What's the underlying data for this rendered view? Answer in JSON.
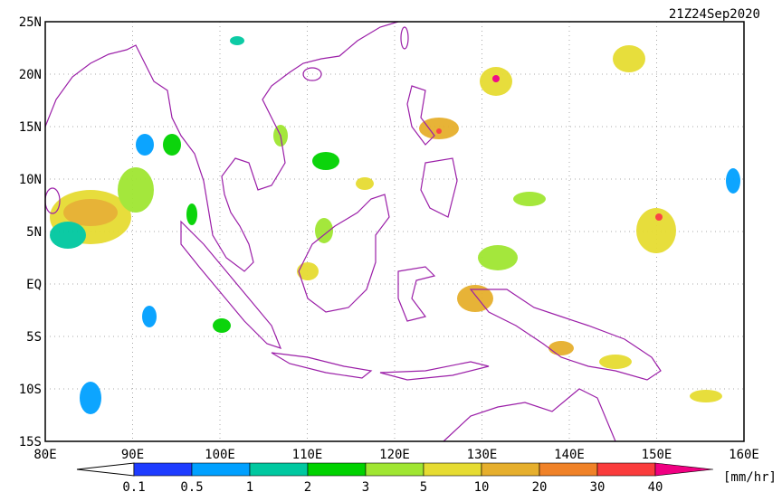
{
  "map": {
    "title": "21Z24Sep2020",
    "lat_labels": [
      "25N",
      "20N",
      "15N",
      "10N",
      "5N",
      "EQ",
      "5S",
      "10S",
      "15S"
    ],
    "lon_labels": [
      "80E",
      "90E",
      "100E",
      "110E",
      "120E",
      "130E",
      "140E",
      "150E",
      "160E"
    ],
    "grid": true
  },
  "colorbar": {
    "labels": [
      "0.1",
      "0.5",
      "1",
      "2",
      "3",
      "5",
      "10",
      "20",
      "30",
      "40"
    ],
    "colors": [
      "#1e3cff",
      "#00a0ff",
      "#00c8a0",
      "#00d200",
      "#a0e632",
      "#e6dc32",
      "#e6af2d",
      "#f08228",
      "#fa3c3c",
      "#f00082"
    ],
    "unit": "[mm/hr]"
  }
}
